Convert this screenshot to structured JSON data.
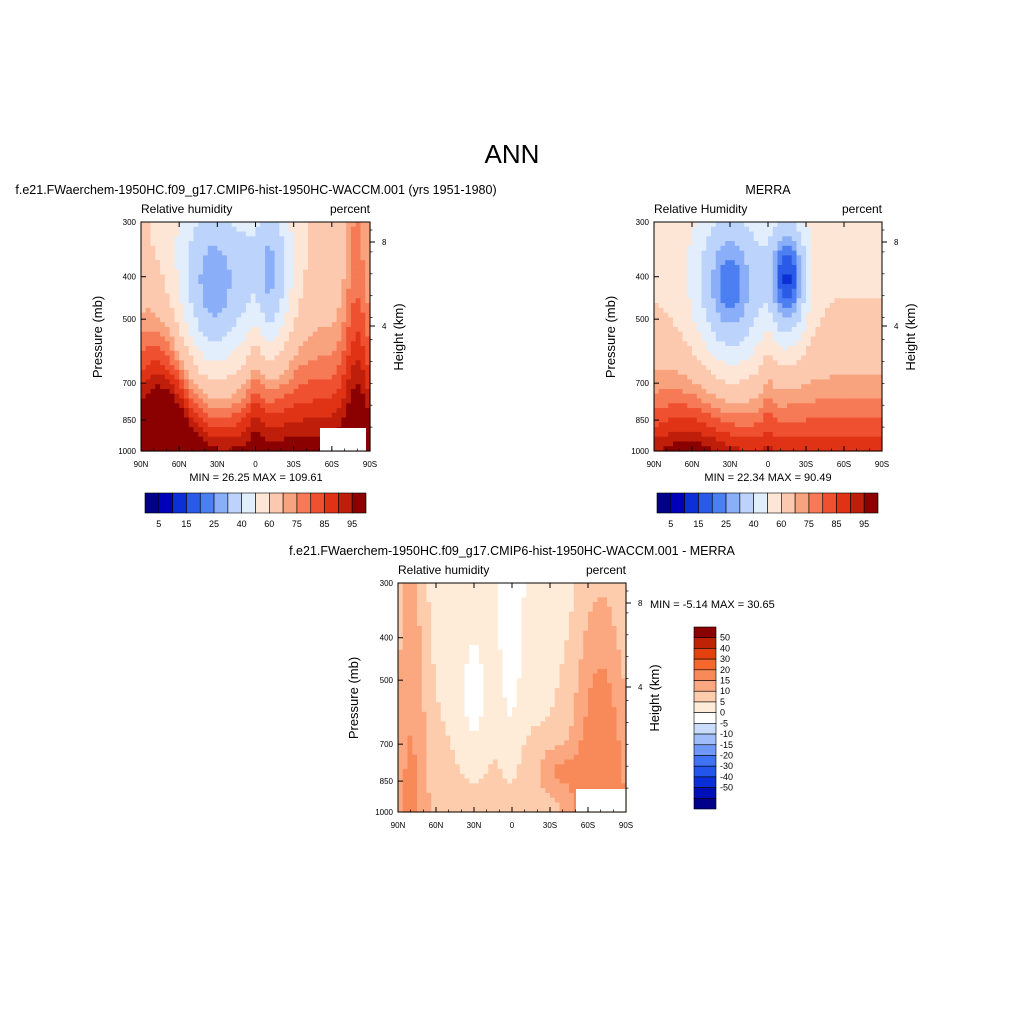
{
  "figure": {
    "title": "ANN"
  },
  "colors": {
    "abs_levels": [
      "#00008b",
      "#0000bb",
      "#0d2fd6",
      "#2a5ae8",
      "#4c7ff2",
      "#8aaef8",
      "#bcd3fb",
      "#e3eefd",
      "#fde6d6",
      "#fcc8ae",
      "#f9a27e",
      "#f57a55",
      "#ef5130",
      "#e03214",
      "#bf1e0b",
      "#8b0000"
    ],
    "diff_levels": [
      "#00008b",
      "#0010b8",
      "#0a2fd8",
      "#2354ec",
      "#3f73f4",
      "#6f98f7",
      "#9fbef9",
      "#cadcfb",
      "#ffffff",
      "#feebd8",
      "#fdccac",
      "#fba880",
      "#f88a5a",
      "#f4682e",
      "#e3420e",
      "#c02205",
      "#8b0000"
    ]
  },
  "chart_data": [
    {
      "id": "model",
      "type": "heatmap",
      "title": "f.e21.FWaerchem-1950HC.f09_g17.CMIP6-hist-1950HC-WACCM.001 (yrs 1951-1980)",
      "left_label": "Relative humidity",
      "right_label": "percent",
      "ylabel": "Pressure (mb)",
      "y2label": "Height (km)",
      "x_ticks": [
        "90N",
        "60N",
        "30N",
        "0",
        "30S",
        "60S",
        "90S"
      ],
      "y_ticks": [
        "300",
        "400",
        "500",
        "700",
        "850",
        "1000"
      ],
      "y2_ticks": [
        "8",
        "4"
      ],
      "stats": "MIN =  26.25  MAX = 109.61",
      "min": 26.25,
      "max": 109.61
    },
    {
      "id": "obs",
      "type": "heatmap",
      "title": "MERRA",
      "left_label": "Relative Humidity",
      "right_label": "percent",
      "ylabel": "Pressure (mb)",
      "y2label": "Height (km)",
      "x_ticks": [
        "90N",
        "60N",
        "30N",
        "0",
        "30S",
        "60S",
        "90S"
      ],
      "y_ticks": [
        "300",
        "400",
        "500",
        "700",
        "850",
        "1000"
      ],
      "y2_ticks": [
        "8",
        "4"
      ],
      "stats": "MIN =  22.34  MAX =  90.49",
      "min": 22.34,
      "max": 90.49
    },
    {
      "id": "diff",
      "type": "heatmap",
      "title": "f.e21.FWaerchem-1950HC.f09_g17.CMIP6-hist-1950HC-WACCM.001 - MERRA",
      "left_label": "Relative humidity",
      "right_label": "percent",
      "ylabel": "Pressure (mb)",
      "y2label": "Height (km)",
      "x_ticks": [
        "90N",
        "60N",
        "30N",
        "0",
        "30S",
        "60S",
        "90S"
      ],
      "y_ticks": [
        "300",
        "400",
        "500",
        "700",
        "850",
        "1000"
      ],
      "y2_ticks": [
        "8",
        "4"
      ],
      "stats": "MIN =  -5.14  MAX =  30.65",
      "min": -5.14,
      "max": 30.65
    }
  ],
  "colorbars": {
    "abs_labels": [
      "5",
      "15",
      "25",
      "40",
      "60",
      "75",
      "85",
      "95"
    ],
    "diff_labels": [
      "50",
      "40",
      "30",
      "20",
      "15",
      "10",
      "5",
      "0",
      "-5",
      "-10",
      "-15",
      "-20",
      "-30",
      "-40",
      "-50"
    ]
  }
}
